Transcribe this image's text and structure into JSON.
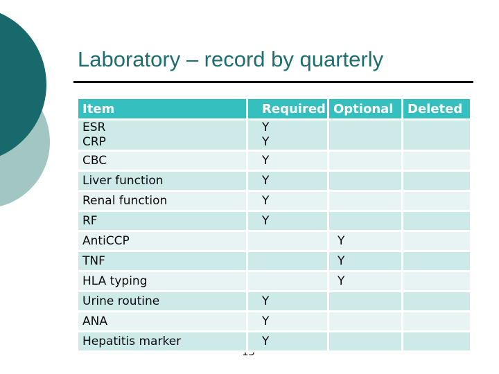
{
  "slide": {
    "title": "Laboratory – record by quarterly",
    "page_number": "15"
  },
  "table": {
    "headers": [
      "Item",
      "Required",
      "Optional",
      "Deleted"
    ],
    "rows": [
      {
        "item": "ESR\nCRP",
        "required": "Y\nY",
        "optional": "",
        "deleted": ""
      },
      {
        "item": "CBC",
        "required": "Y",
        "optional": "",
        "deleted": ""
      },
      {
        "item": "Liver function",
        "required": "Y",
        "optional": "",
        "deleted": ""
      },
      {
        "item": "Renal function",
        "required": "Y",
        "optional": "",
        "deleted": ""
      },
      {
        "item": "RF",
        "required": "Y",
        "optional": "",
        "deleted": ""
      },
      {
        "item": "AntiCCP",
        "required": "",
        "optional": "Y",
        "deleted": ""
      },
      {
        "item": "TNF",
        "required": "",
        "optional": "Y",
        "deleted": ""
      },
      {
        "item": "HLA typing",
        "required": "",
        "optional": "Y",
        "deleted": ""
      },
      {
        "item": "Urine routine",
        "required": "Y",
        "optional": "",
        "deleted": ""
      },
      {
        "item": "ANA",
        "required": "Y",
        "optional": "",
        "deleted": ""
      },
      {
        "item": "Hepatitis marker",
        "required": "Y",
        "optional": "",
        "deleted": ""
      }
    ]
  },
  "colors": {
    "header": "#35bfbf",
    "row_dark": "#cde9e8",
    "row_light": "#e8f4f3",
    "circle_dark": "#17696b",
    "circle_light": "#a2c6c2",
    "title": "#1d6e6e",
    "text": "#0b0b0b",
    "rule": "#000000"
  }
}
